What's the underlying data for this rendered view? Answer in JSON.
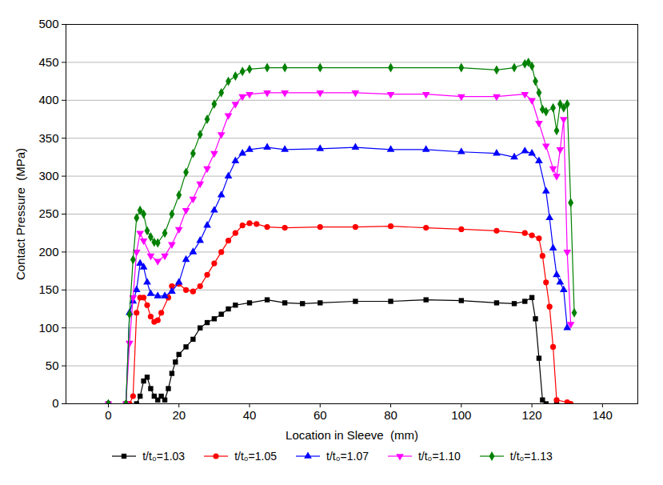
{
  "chart_data": {
    "type": "line",
    "x_label": "Location in Sleeve  (mm)",
    "y_label": "Contact Pressure  (MPa)",
    "xlim": [
      -12,
      150
    ],
    "xticks": [
      0,
      20,
      40,
      60,
      80,
      100,
      120,
      140
    ],
    "ylim": [
      0,
      500
    ],
    "yticks": [
      0,
      50,
      100,
      150,
      200,
      250,
      300,
      350,
      400,
      450,
      500
    ],
    "grid": true,
    "legend": "bottom",
    "series": [
      {
        "name": "t/t₀=1.03",
        "color": "#000000",
        "marker": "square",
        "line_style": "solid",
        "x": [
          0,
          5,
          8,
          9,
          10,
          11,
          12,
          13,
          14,
          15,
          16,
          17,
          18,
          19,
          20,
          22,
          24,
          26,
          28,
          30,
          32,
          34,
          36,
          40,
          45,
          50,
          55,
          60,
          70,
          80,
          90,
          100,
          110,
          115,
          118,
          120,
          121,
          122,
          123,
          124,
          127,
          130
        ],
        "values": [
          0,
          0,
          0,
          10,
          30,
          35,
          20,
          10,
          5,
          10,
          5,
          20,
          40,
          55,
          65,
          75,
          85,
          100,
          107,
          112,
          118,
          125,
          130,
          133,
          137,
          133,
          132,
          133,
          135,
          135,
          137,
          136,
          133,
          132,
          135,
          140,
          112,
          60,
          5,
          0,
          0,
          0
        ]
      },
      {
        "name": "t/t₀=1.05",
        "color": "#ff0000",
        "marker": "circle",
        "line_style": "solid",
        "x": [
          0,
          5,
          6,
          7,
          8,
          9,
          10,
          11,
          12,
          13,
          14,
          15,
          17,
          18,
          20,
          22,
          24,
          26,
          28,
          30,
          32,
          34,
          36,
          38,
          40,
          42,
          45,
          50,
          60,
          70,
          80,
          90,
          100,
          110,
          118,
          120,
          122,
          123,
          124,
          125,
          126,
          127,
          130,
          131
        ],
        "values": [
          0,
          0,
          0,
          10,
          120,
          140,
          140,
          130,
          115,
          108,
          110,
          120,
          140,
          155,
          158,
          150,
          148,
          155,
          170,
          185,
          200,
          215,
          225,
          235,
          238,
          237,
          233,
          232,
          233,
          233,
          234,
          232,
          230,
          228,
          225,
          222,
          218,
          195,
          160,
          128,
          75,
          5,
          2,
          0
        ]
      },
      {
        "name": "t/t₀=1.07",
        "color": "#0000ff",
        "marker": "triangle",
        "line_style": "solid",
        "x": [
          0,
          5,
          6,
          7,
          8,
          9,
          10,
          11,
          12,
          14,
          16,
          18,
          20,
          22,
          24,
          26,
          28,
          30,
          32,
          34,
          36,
          38,
          40,
          45,
          50,
          60,
          70,
          80,
          90,
          100,
          110,
          115,
          118,
          120,
          122,
          124,
          125,
          126,
          127,
          128,
          129,
          130
        ],
        "values": [
          0,
          0,
          120,
          135,
          150,
          185,
          180,
          160,
          145,
          142,
          142,
          148,
          160,
          190,
          200,
          215,
          235,
          255,
          275,
          300,
          320,
          330,
          335,
          338,
          335,
          336,
          338,
          335,
          335,
          332,
          330,
          325,
          333,
          330,
          320,
          280,
          245,
          205,
          170,
          160,
          150,
          100
        ]
      },
      {
        "name": "t/t₀=1.10",
        "color": "#ff00ff",
        "marker": "triangle-down",
        "line_style": "solid",
        "x": [
          0,
          5,
          6,
          7,
          8,
          9,
          10,
          12,
          14,
          16,
          18,
          20,
          22,
          24,
          26,
          28,
          30,
          32,
          34,
          36,
          38,
          40,
          45,
          50,
          60,
          70,
          80,
          90,
          100,
          110,
          118,
          120,
          122,
          124,
          126,
          127,
          128,
          129,
          130,
          131
        ],
        "values": [
          0,
          0,
          80,
          140,
          200,
          225,
          215,
          195,
          188,
          195,
          210,
          230,
          255,
          270,
          290,
          310,
          330,
          355,
          380,
          395,
          405,
          408,
          410,
          410,
          410,
          410,
          408,
          408,
          405,
          405,
          408,
          400,
          370,
          340,
          310,
          300,
          335,
          375,
          200,
          105
        ]
      },
      {
        "name": "t/t₀=1.13",
        "color": "#008000",
        "marker": "diamond",
        "line_style": "solid",
        "x": [
          0,
          5,
          6,
          7,
          8,
          9,
          10,
          11,
          12,
          13,
          14,
          16,
          18,
          20,
          22,
          24,
          26,
          28,
          30,
          32,
          34,
          36,
          38,
          40,
          45,
          50,
          60,
          80,
          100,
          110,
          115,
          118,
          119,
          120,
          121,
          122,
          123,
          124,
          126,
          127,
          128,
          129,
          130,
          131,
          132
        ],
        "values": [
          0,
          0,
          118,
          190,
          245,
          255,
          250,
          228,
          220,
          213,
          212,
          225,
          250,
          275,
          305,
          330,
          355,
          375,
          395,
          410,
          425,
          432,
          438,
          441,
          443,
          443,
          443,
          443,
          443,
          440,
          443,
          448,
          450,
          445,
          425,
          410,
          388,
          385,
          390,
          360,
          395,
          390,
          395,
          265,
          120
        ]
      }
    ]
  }
}
